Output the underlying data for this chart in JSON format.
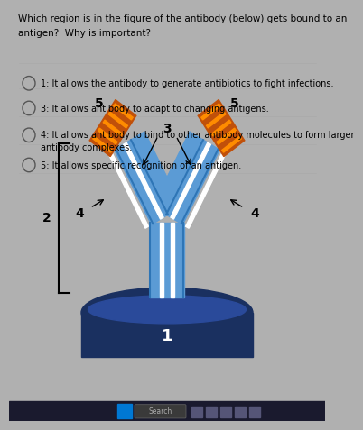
{
  "title_line1": "Which region is in the figure of the antibody (below) gets bound to an",
  "title_line2": "antigen?  Why is important?",
  "bg_outer": "#b0b0b0",
  "bg_page": "#e8e8e8",
  "antibody": {
    "light_blue": "#5b9bd5",
    "white_stripe": "#ffffff",
    "dark_blue_line": "#2e75b6",
    "orange_block": "#c0500a",
    "orange_stripe": "#ff8c00",
    "antigen_dark": "#1a3060",
    "antigen_mid": "#2a4a9a",
    "antigen_rect": "#1e3a70"
  },
  "options": [
    "1: It allows the antibody to generate antibiotics to fight infections.",
    "3: It allows antibody to adapt to changing antigens.",
    "4: It allows antibody to bind to other antibody molecules to form larger\n    antibody complexes.",
    "5: It allows specific recognition of an antigen."
  ],
  "font_title": 7.5,
  "font_label": 9,
  "font_option": 7
}
